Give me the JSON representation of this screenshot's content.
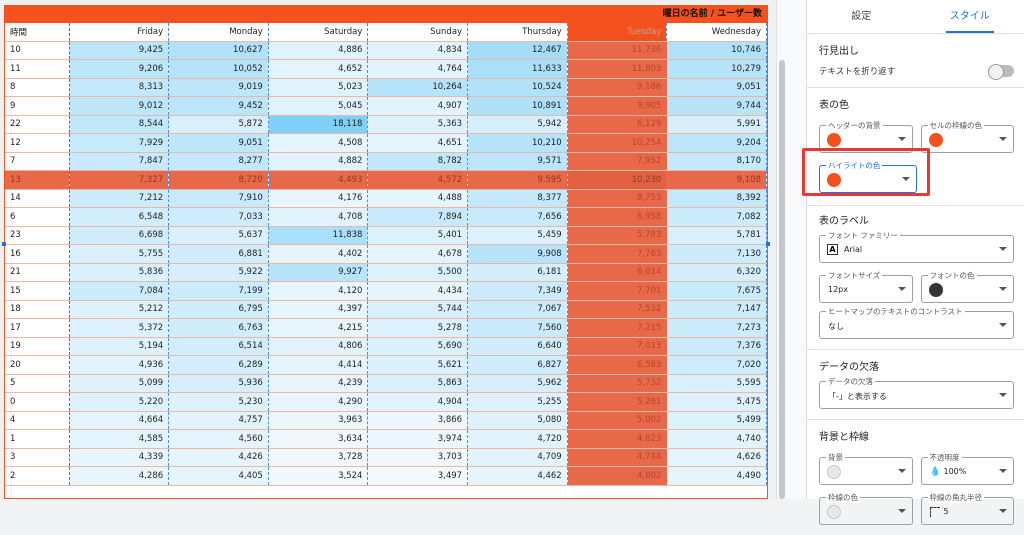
{
  "table": {
    "title": "曜日の名前 / ユーザー数",
    "columns": [
      "時間",
      "Friday",
      "Monday",
      "Saturday",
      "Sunday",
      "Thursday",
      "Tuesday",
      "Wednesday"
    ],
    "highlight_column": "Tuesday",
    "highlight_row_hour": "13",
    "rows": [
      [
        "10",
        "9,425",
        "10,627",
        "4,886",
        "4,834",
        "12,467",
        "11,736",
        "10,746"
      ],
      [
        "11",
        "9,206",
        "10,052",
        "4,652",
        "4,764",
        "11,633",
        "11,803",
        "10,279"
      ],
      [
        "8",
        "8,313",
        "9,019",
        "5,023",
        "10,264",
        "10,524",
        "9,186",
        "9,051"
      ],
      [
        "9",
        "9,012",
        "9,452",
        "5,045",
        "4,907",
        "10,891",
        "9,905",
        "9,744"
      ],
      [
        "22",
        "8,544",
        "5,872",
        "18,118",
        "5,363",
        "5,942",
        "6,129",
        "5,991"
      ],
      [
        "12",
        "7,929",
        "9,051",
        "4,508",
        "4,651",
        "10,210",
        "10,254",
        "9,204"
      ],
      [
        "7",
        "7,847",
        "8,277",
        "4,882",
        "8,782",
        "9,571",
        "7,952",
        "8,170"
      ],
      [
        "13",
        "7,327",
        "8,720",
        "4,493",
        "4,572",
        "9,595",
        "10,230",
        "9,108"
      ],
      [
        "14",
        "7,212",
        "7,910",
        "4,176",
        "4,488",
        "8,377",
        "8,753",
        "8,392"
      ],
      [
        "6",
        "6,548",
        "7,033",
        "4,708",
        "7,894",
        "7,656",
        "6,958",
        "7,082"
      ],
      [
        "23",
        "6,698",
        "5,637",
        "11,838",
        "5,401",
        "5,459",
        "5,783",
        "5,781"
      ],
      [
        "16",
        "5,755",
        "6,881",
        "4,402",
        "4,678",
        "9,908",
        "7,763",
        "7,130"
      ],
      [
        "21",
        "5,836",
        "5,922",
        "9,927",
        "5,500",
        "6,181",
        "6,014",
        "6,320"
      ],
      [
        "15",
        "7,084",
        "7,199",
        "4,120",
        "4,434",
        "7,349",
        "7,701",
        "7,675"
      ],
      [
        "18",
        "5,212",
        "6,795",
        "4,397",
        "5,744",
        "7,067",
        "7,532",
        "7,147"
      ],
      [
        "17",
        "5,372",
        "6,763",
        "4,215",
        "5,278",
        "7,560",
        "7,215",
        "7,273"
      ],
      [
        "19",
        "5,194",
        "6,514",
        "4,806",
        "5,690",
        "6,640",
        "7,013",
        "7,376"
      ],
      [
        "20",
        "4,936",
        "6,289",
        "4,414",
        "5,621",
        "6,827",
        "6,583",
        "7,020"
      ],
      [
        "5",
        "5,099",
        "5,936",
        "4,239",
        "5,863",
        "5,962",
        "5,732",
        "5,595"
      ],
      [
        "0",
        "5,220",
        "5,230",
        "4,290",
        "4,904",
        "5,255",
        "5,261",
        "5,475"
      ],
      [
        "4",
        "4,664",
        "4,757",
        "3,963",
        "3,866",
        "5,080",
        "5,002",
        "5,499"
      ],
      [
        "1",
        "4,585",
        "4,560",
        "3,634",
        "3,974",
        "4,720",
        "4,823",
        "4,740"
      ],
      [
        "3",
        "4,339",
        "4,426",
        "3,728",
        "3,703",
        "4,709",
        "4,744",
        "4,626"
      ],
      [
        "2",
        "4,286",
        "4,405",
        "3,524",
        "3,497",
        "4,462",
        "4,602",
        "4,490"
      ]
    ],
    "heat_colors": {
      "low": "#f3f9fd",
      "high": "#7fd0f7"
    },
    "highlight_color": "#f4511e"
  },
  "panel": {
    "tabs": [
      "設定",
      "スタイル"
    ],
    "active_tab": "スタイル",
    "row_header": {
      "title": "行見出し",
      "wrap_label": "テキストを折り返す"
    },
    "table_colors": {
      "title": "表の色",
      "header_bg_label": "ヘッダーの背景",
      "header_bg_color": "#f4511e",
      "cell_border_label": "セルの枠線の色",
      "cell_border_color": "#f4511e",
      "highlight_label": "ハイライトの色",
      "highlight_color": "#f4511e"
    },
    "table_labels": {
      "title": "表のラベル",
      "font_family_label": "フォント ファミリー",
      "font_family_value": "Arial",
      "font_size_label": "フォントサイズ",
      "font_size_value": "12px",
      "font_color_label": "フォントの色",
      "font_color": "#333333",
      "contrast_label": "ヒートマップのテキストのコントラスト",
      "contrast_value": "なし"
    },
    "missing_data": {
      "title": "データの欠落",
      "field_label": "データの欠落",
      "field_value": "「-」と表示する"
    },
    "background": {
      "title": "背景と枠線",
      "bg_label": "背景",
      "opacity_label": "不透明度",
      "opacity_value": "100%",
      "border_color_label": "枠線の色",
      "radius_label": "枠線の角丸半径",
      "radius_value": "5"
    }
  }
}
